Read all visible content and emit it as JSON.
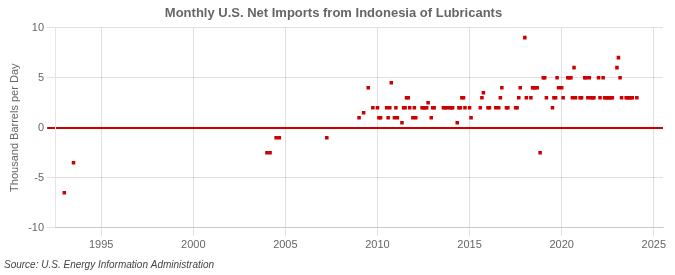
{
  "chart_data": {
    "type": "scatter",
    "title": "Monthly U.S. Net Imports from Indonesia of Lubricants",
    "ylabel": "Thousand Barrels per Day",
    "annotations": [
      "Source: U.S. Energy Information Administration"
    ],
    "color": "#cc0000",
    "marker": "square",
    "grid": true,
    "xlim": [
      1992.5,
      2025.5
    ],
    "xticks": [
      1995,
      2000,
      2005,
      2010,
      2015,
      2020,
      2025
    ],
    "ylim": [
      -10,
      10
    ],
    "yticks": [
      -10,
      -5,
      0,
      5,
      10
    ],
    "x": [
      1993.0,
      1993.5,
      2004.0,
      2004.17,
      2004.5,
      2004.67,
      2007.25,
      2009.0,
      2009.25,
      2009.5,
      2009.75,
      2010.0,
      2010.08,
      2010.17,
      2010.5,
      2010.58,
      2010.67,
      2010.75,
      2010.92,
      2011.0,
      2011.08,
      2011.33,
      2011.42,
      2011.5,
      2011.58,
      2011.67,
      2011.75,
      2011.92,
      2012.0,
      2012.08,
      2012.42,
      2012.5,
      2012.58,
      2012.67,
      2012.75,
      2012.92,
      2013.0,
      2013.08,
      2013.58,
      2013.67,
      2013.75,
      2013.92,
      2014.0,
      2014.08,
      2014.33,
      2014.42,
      2014.5,
      2014.58,
      2014.67,
      2014.75,
      2015.0,
      2015.08,
      2015.58,
      2015.67,
      2015.75,
      2016.0,
      2016.08,
      2016.42,
      2016.58,
      2016.67,
      2016.75,
      2017.0,
      2017.08,
      2017.5,
      2017.58,
      2017.67,
      2017.75,
      2018.0,
      2018.08,
      2018.33,
      2018.42,
      2018.5,
      2018.58,
      2018.67,
      2018.83,
      2019.0,
      2019.08,
      2019.17,
      2019.5,
      2019.58,
      2019.67,
      2019.75,
      2019.83,
      2020.0,
      2020.08,
      2020.33,
      2020.42,
      2020.5,
      2020.58,
      2020.67,
      2020.75,
      2021.0,
      2021.08,
      2021.25,
      2021.33,
      2021.42,
      2021.5,
      2021.58,
      2021.67,
      2021.75,
      2022.0,
      2022.08,
      2022.25,
      2022.33,
      2022.42,
      2022.5,
      2022.58,
      2022.67,
      2022.75,
      2023.0,
      2023.08,
      2023.17,
      2023.25,
      2023.5,
      2023.58,
      2023.67,
      2023.75,
      2023.83,
      2024.08
    ],
    "values": [
      -6.5,
      -3.5,
      -2.5,
      -2.5,
      -1.0,
      -1.0,
      -1.0,
      1.0,
      1.5,
      4.0,
      2.0,
      2.0,
      1.0,
      1.0,
      2.0,
      1.0,
      2.0,
      4.5,
      1.0,
      2.0,
      1.0,
      0.5,
      2.0,
      2.0,
      3.0,
      3.0,
      2.0,
      1.0,
      2.0,
      1.0,
      2.0,
      2.0,
      2.0,
      2.0,
      2.5,
      1.0,
      2.0,
      2.0,
      2.0,
      2.0,
      2.0,
      2.0,
      2.0,
      2.0,
      0.5,
      2.0,
      2.0,
      3.0,
      3.0,
      2.0,
      2.0,
      1.0,
      2.0,
      3.0,
      3.5,
      2.0,
      2.0,
      2.0,
      2.0,
      3.0,
      4.0,
      2.0,
      2.0,
      2.0,
      2.0,
      3.0,
      4.0,
      9.0,
      3.0,
      3.0,
      4.0,
      4.0,
      4.0,
      4.0,
      -2.5,
      5.0,
      5.0,
      3.0,
      2.0,
      3.0,
      3.0,
      5.0,
      4.0,
      4.0,
      3.0,
      5.0,
      5.0,
      5.0,
      3.0,
      6.0,
      3.0,
      3.0,
      3.0,
      5.0,
      5.0,
      3.0,
      5.0,
      3.0,
      3.0,
      3.0,
      5.0,
      3.0,
      5.0,
      3.0,
      3.0,
      3.0,
      3.0,
      3.0,
      3.0,
      6.0,
      7.0,
      5.0,
      3.0,
      3.0,
      3.0,
      3.0,
      3.0,
      3.0,
      3.0
    ]
  }
}
